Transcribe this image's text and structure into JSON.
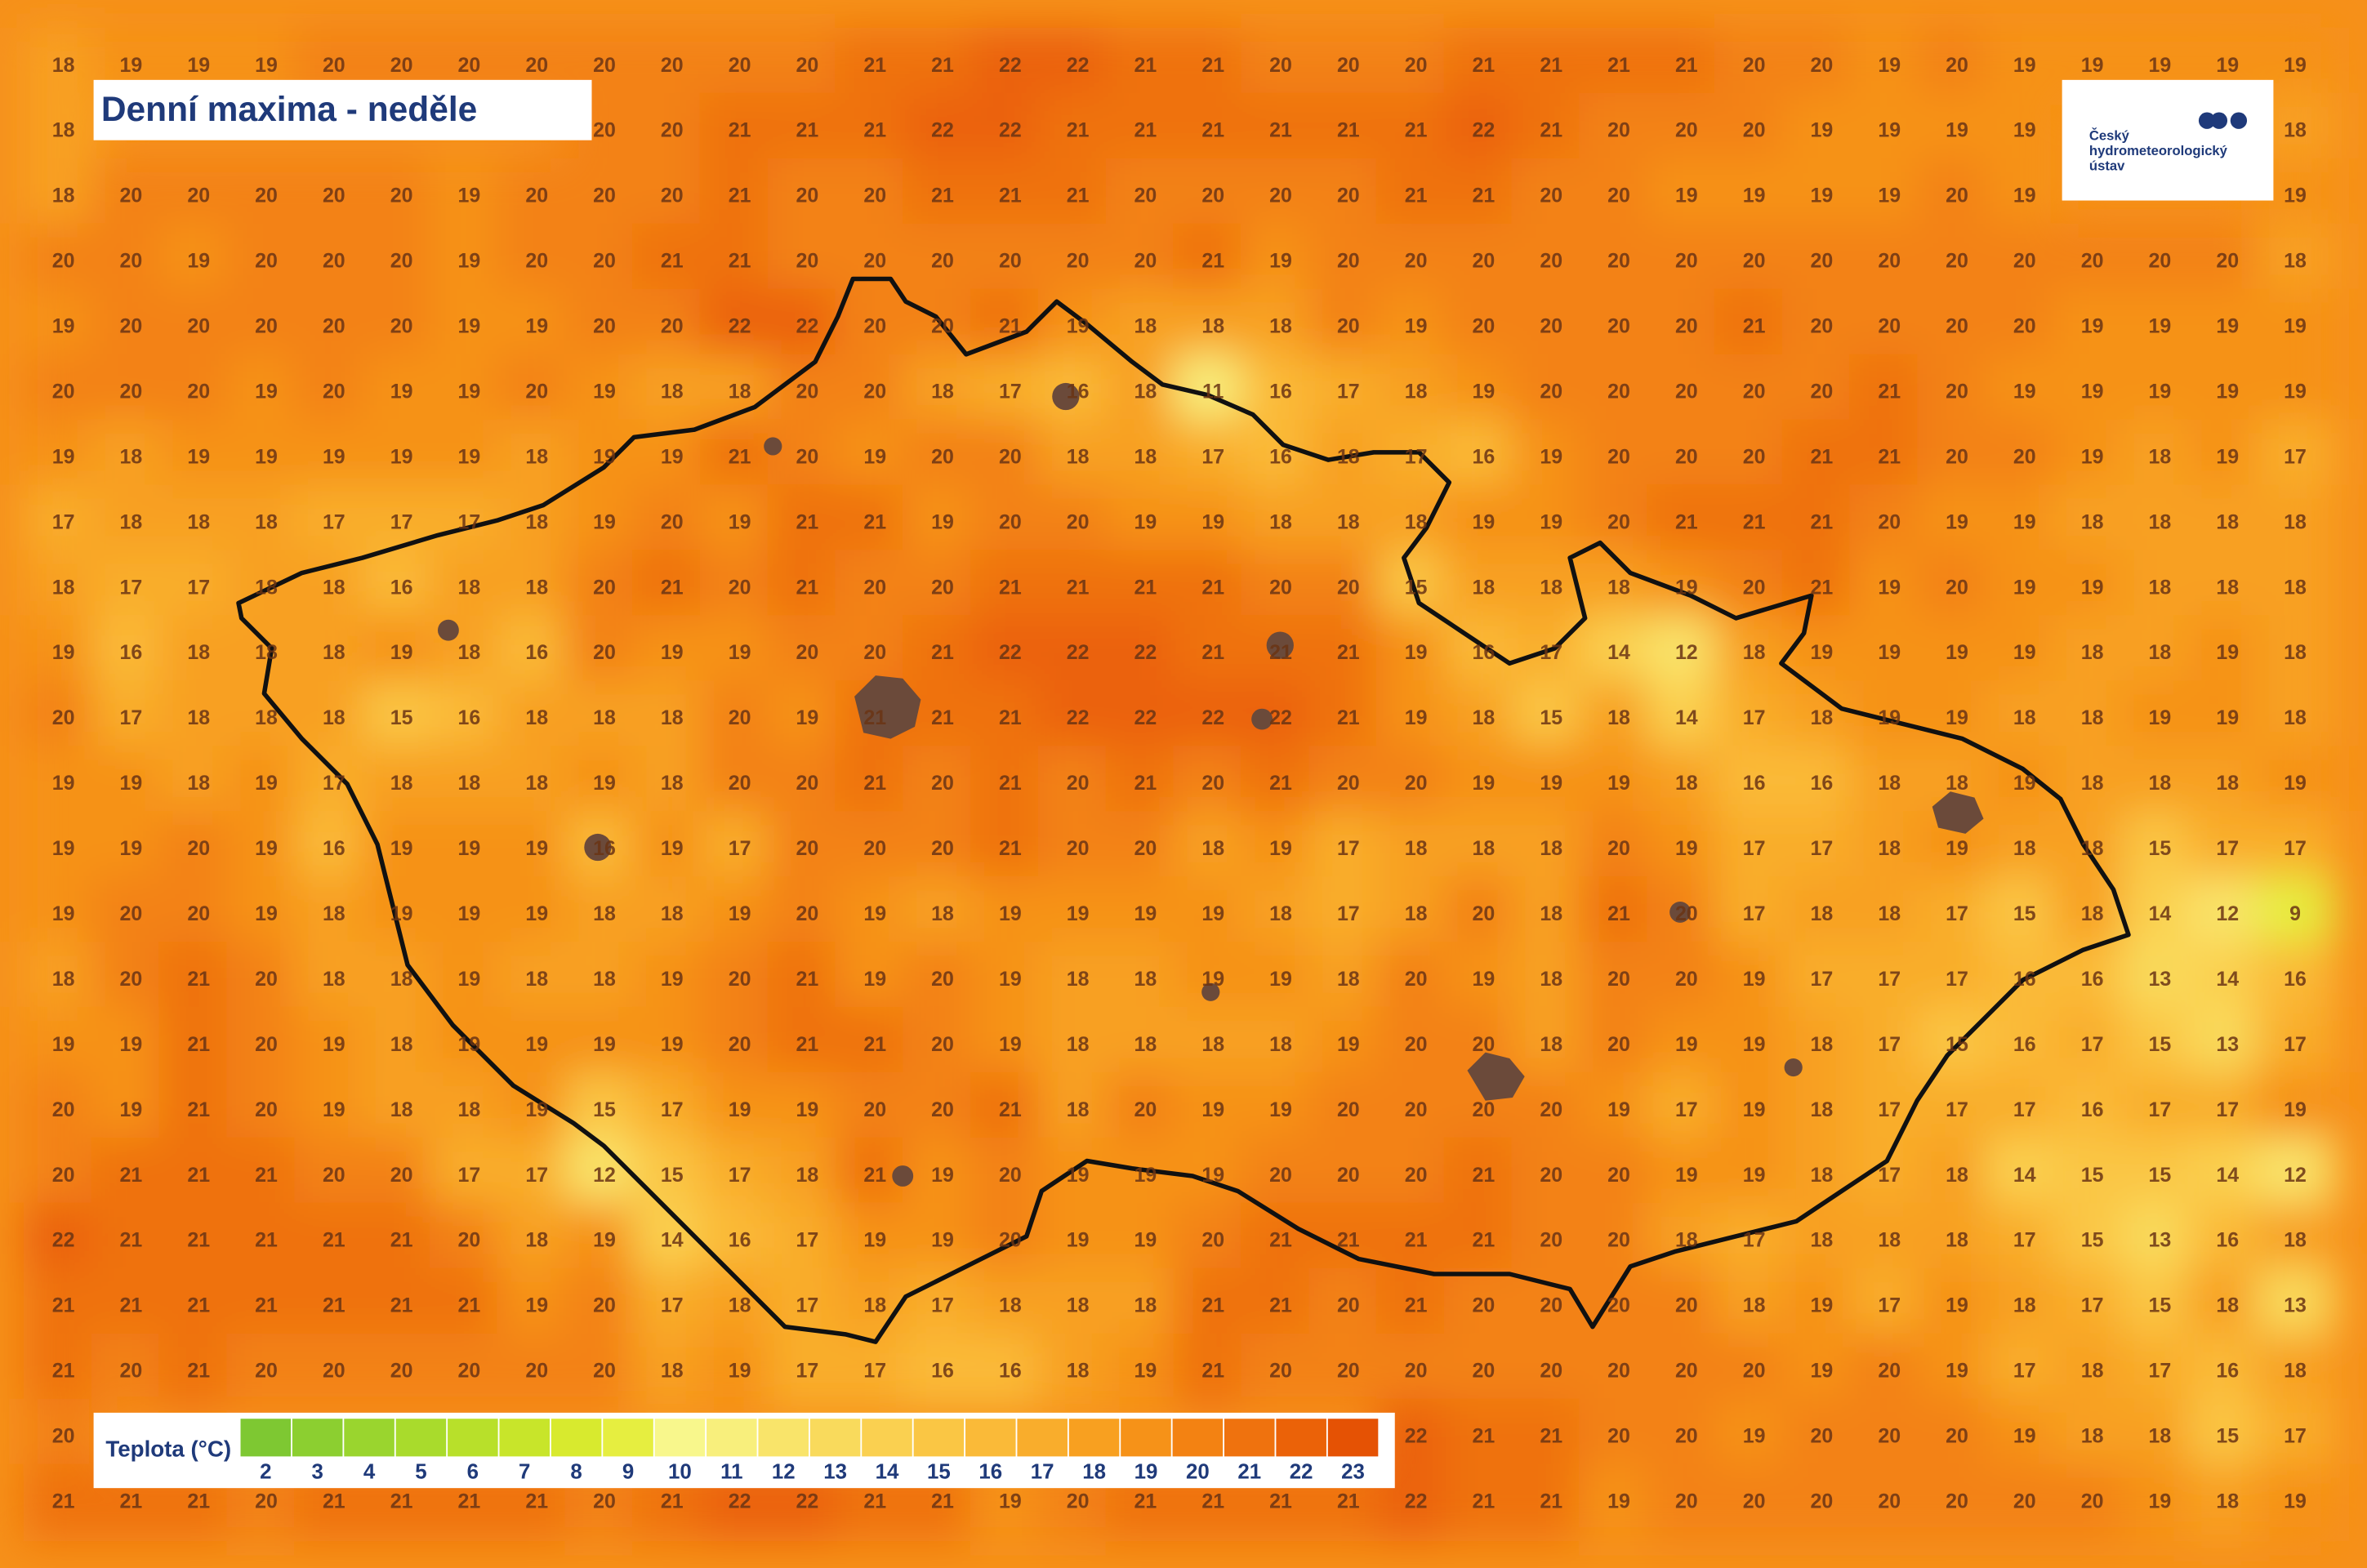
{
  "header": {
    "title": "Denní maxima - neděle"
  },
  "logo": {
    "lines": [
      "Český",
      "hydrometeorologický",
      "ústav"
    ]
  },
  "grid": {
    "rows": [
      [
        18,
        19,
        19,
        19,
        20,
        20,
        20,
        20,
        20,
        20,
        20,
        20,
        21,
        21,
        22,
        22,
        21,
        21,
        20,
        20,
        20,
        21,
        21,
        21,
        21,
        20,
        20,
        19,
        20,
        19,
        19,
        19,
        19,
        19
      ],
      [
        18,
        null,
        null,
        null,
        null,
        null,
        null,
        null,
        20,
        20,
        21,
        21,
        21,
        22,
        22,
        21,
        21,
        21,
        21,
        21,
        21,
        22,
        21,
        20,
        20,
        20,
        19,
        19,
        19,
        19,
        null,
        null,
        null,
        18
      ],
      [
        18,
        20,
        20,
        20,
        20,
        20,
        19,
        20,
        20,
        20,
        21,
        20,
        20,
        21,
        21,
        21,
        20,
        20,
        20,
        20,
        21,
        21,
        20,
        20,
        19,
        19,
        19,
        19,
        20,
        19,
        null,
        null,
        null,
        19
      ],
      [
        20,
        20,
        19,
        20,
        20,
        20,
        19,
        20,
        20,
        21,
        21,
        20,
        20,
        20,
        20,
        20,
        20,
        21,
        19,
        20,
        20,
        20,
        20,
        20,
        20,
        20,
        20,
        20,
        20,
        20,
        20,
        20,
        20,
        18
      ],
      [
        19,
        20,
        20,
        20,
        20,
        20,
        19,
        19,
        20,
        20,
        22,
        22,
        20,
        20,
        21,
        19,
        18,
        18,
        18,
        20,
        19,
        20,
        20,
        20,
        20,
        21,
        20,
        20,
        20,
        20,
        19,
        19,
        19,
        19
      ],
      [
        20,
        20,
        20,
        19,
        20,
        19,
        19,
        20,
        19,
        18,
        18,
        20,
        20,
        18,
        17,
        16,
        18,
        11,
        16,
        17,
        18,
        19,
        20,
        20,
        20,
        20,
        20,
        21,
        20,
        19,
        19,
        19,
        19,
        19
      ],
      [
        19,
        18,
        19,
        19,
        19,
        19,
        19,
        18,
        19,
        19,
        21,
        20,
        19,
        20,
        20,
        18,
        18,
        17,
        16,
        18,
        17,
        16,
        19,
        20,
        20,
        20,
        21,
        21,
        20,
        20,
        19,
        18,
        19,
        17
      ],
      [
        17,
        18,
        18,
        18,
        17,
        17,
        17,
        18,
        19,
        20,
        19,
        21,
        21,
        19,
        20,
        20,
        19,
        19,
        18,
        18,
        18,
        19,
        19,
        20,
        21,
        21,
        21,
        20,
        19,
        19,
        18,
        18,
        18,
        18
      ],
      [
        18,
        17,
        17,
        18,
        18,
        16,
        18,
        18,
        20,
        21,
        20,
        21,
        20,
        20,
        21,
        21,
        21,
        21,
        20,
        20,
        15,
        18,
        18,
        18,
        19,
        20,
        21,
        19,
        20,
        19,
        19,
        18,
        18,
        18
      ],
      [
        19,
        16,
        18,
        18,
        18,
        19,
        18,
        16,
        20,
        19,
        19,
        20,
        20,
        21,
        22,
        22,
        22,
        21,
        21,
        21,
        19,
        16,
        17,
        14,
        12,
        18,
        19,
        19,
        19,
        19,
        18,
        18,
        19,
        18
      ],
      [
        20,
        17,
        18,
        18,
        18,
        15,
        16,
        18,
        18,
        18,
        20,
        19,
        21,
        21,
        21,
        22,
        22,
        22,
        22,
        21,
        19,
        18,
        15,
        18,
        14,
        17,
        18,
        19,
        19,
        18,
        18,
        19,
        19,
        18
      ],
      [
        19,
        19,
        18,
        19,
        17,
        18,
        18,
        18,
        19,
        18,
        20,
        20,
        21,
        20,
        21,
        20,
        21,
        20,
        21,
        20,
        20,
        19,
        19,
        19,
        18,
        16,
        16,
        18,
        18,
        19,
        18,
        18,
        18,
        19
      ],
      [
        19,
        19,
        20,
        19,
        16,
        19,
        19,
        19,
        16,
        19,
        17,
        20,
        20,
        20,
        21,
        20,
        20,
        18,
        19,
        17,
        18,
        18,
        18,
        20,
        19,
        17,
        17,
        18,
        19,
        18,
        18,
        15,
        17,
        17
      ],
      [
        19,
        20,
        20,
        19,
        18,
        19,
        19,
        19,
        18,
        18,
        19,
        20,
        19,
        18,
        19,
        19,
        19,
        19,
        18,
        17,
        18,
        20,
        18,
        21,
        20,
        17,
        18,
        18,
        17,
        15,
        18,
        14,
        12,
        9
      ],
      [
        18,
        20,
        21,
        20,
        18,
        18,
        19,
        18,
        18,
        19,
        20,
        21,
        19,
        20,
        19,
        18,
        18,
        19,
        19,
        18,
        20,
        19,
        18,
        20,
        20,
        19,
        17,
        17,
        17,
        16,
        16,
        13,
        14,
        16
      ],
      [
        19,
        19,
        21,
        20,
        19,
        18,
        19,
        19,
        19,
        19,
        20,
        21,
        21,
        20,
        19,
        18,
        18,
        18,
        18,
        19,
        20,
        20,
        18,
        20,
        19,
        19,
        18,
        17,
        15,
        16,
        17,
        15,
        13,
        17
      ],
      [
        20,
        19,
        21,
        20,
        19,
        18,
        18,
        19,
        15,
        17,
        19,
        19,
        20,
        20,
        21,
        18,
        20,
        19,
        19,
        20,
        20,
        20,
        20,
        19,
        17,
        19,
        18,
        17,
        17,
        17,
        16,
        17,
        17,
        19
      ],
      [
        20,
        21,
        21,
        21,
        20,
        20,
        17,
        17,
        12,
        15,
        17,
        18,
        21,
        19,
        20,
        19,
        19,
        19,
        20,
        20,
        20,
        21,
        20,
        20,
        19,
        19,
        18,
        17,
        18,
        14,
        15,
        15,
        14,
        12
      ],
      [
        22,
        21,
        21,
        21,
        21,
        21,
        20,
        18,
        19,
        14,
        16,
        17,
        19,
        19,
        20,
        19,
        19,
        20,
        21,
        21,
        21,
        21,
        20,
        20,
        18,
        17,
        18,
        18,
        18,
        17,
        15,
        13,
        16,
        18
      ],
      [
        21,
        21,
        21,
        21,
        21,
        21,
        21,
        19,
        20,
        17,
        18,
        17,
        18,
        17,
        18,
        18,
        18,
        21,
        21,
        20,
        21,
        20,
        20,
        20,
        20,
        18,
        19,
        17,
        19,
        18,
        17,
        15,
        18,
        13
      ],
      [
        21,
        20,
        21,
        20,
        20,
        20,
        20,
        20,
        20,
        18,
        19,
        17,
        17,
        16,
        16,
        18,
        19,
        21,
        20,
        20,
        20,
        20,
        20,
        20,
        20,
        20,
        19,
        20,
        19,
        17,
        18,
        17,
        16,
        18
      ],
      [
        20,
        null,
        null,
        null,
        null,
        null,
        null,
        null,
        null,
        null,
        null,
        null,
        null,
        null,
        null,
        null,
        null,
        null,
        null,
        null,
        22,
        21,
        21,
        20,
        20,
        19,
        20,
        20,
        20,
        19,
        18,
        18,
        15,
        17
      ],
      [
        21,
        21,
        21,
        20,
        21,
        21,
        21,
        21,
        20,
        21,
        22,
        22,
        21,
        21,
        19,
        20,
        21,
        21,
        21,
        21,
        22,
        21,
        21,
        19,
        20,
        20,
        20,
        20,
        20,
        20,
        20,
        19,
        18,
        19
      ]
    ]
  },
  "legend": {
    "title": "Teplota (°C)",
    "items": [
      {
        "value": 2,
        "color": "#7ec832"
      },
      {
        "value": 3,
        "color": "#8ccf30"
      },
      {
        "value": 4,
        "color": "#9ad52e"
      },
      {
        "value": 5,
        "color": "#a9db2c"
      },
      {
        "value": 6,
        "color": "#b8e02a"
      },
      {
        "value": 7,
        "color": "#c8e52a"
      },
      {
        "value": 8,
        "color": "#d8ea2e"
      },
      {
        "value": 9,
        "color": "#e6ee40"
      },
      {
        "value": 10,
        "color": "#f8f78c"
      },
      {
        "value": 11,
        "color": "#f8ef7c"
      },
      {
        "value": 12,
        "color": "#f9e46a"
      },
      {
        "value": 13,
        "color": "#f9da5c"
      },
      {
        "value": 14,
        "color": "#fad050"
      },
      {
        "value": 15,
        "color": "#fac644"
      },
      {
        "value": 16,
        "color": "#faba38"
      },
      {
        "value": 17,
        "color": "#f9ad2c"
      },
      {
        "value": 18,
        "color": "#f8a020"
      },
      {
        "value": 19,
        "color": "#f69218"
      },
      {
        "value": 20,
        "color": "#f38212"
      },
      {
        "value": 21,
        "color": "#ef720e"
      },
      {
        "value": 22,
        "color": "#eb6208"
      },
      {
        "value": 23,
        "color": "#e55204"
      }
    ]
  }
}
